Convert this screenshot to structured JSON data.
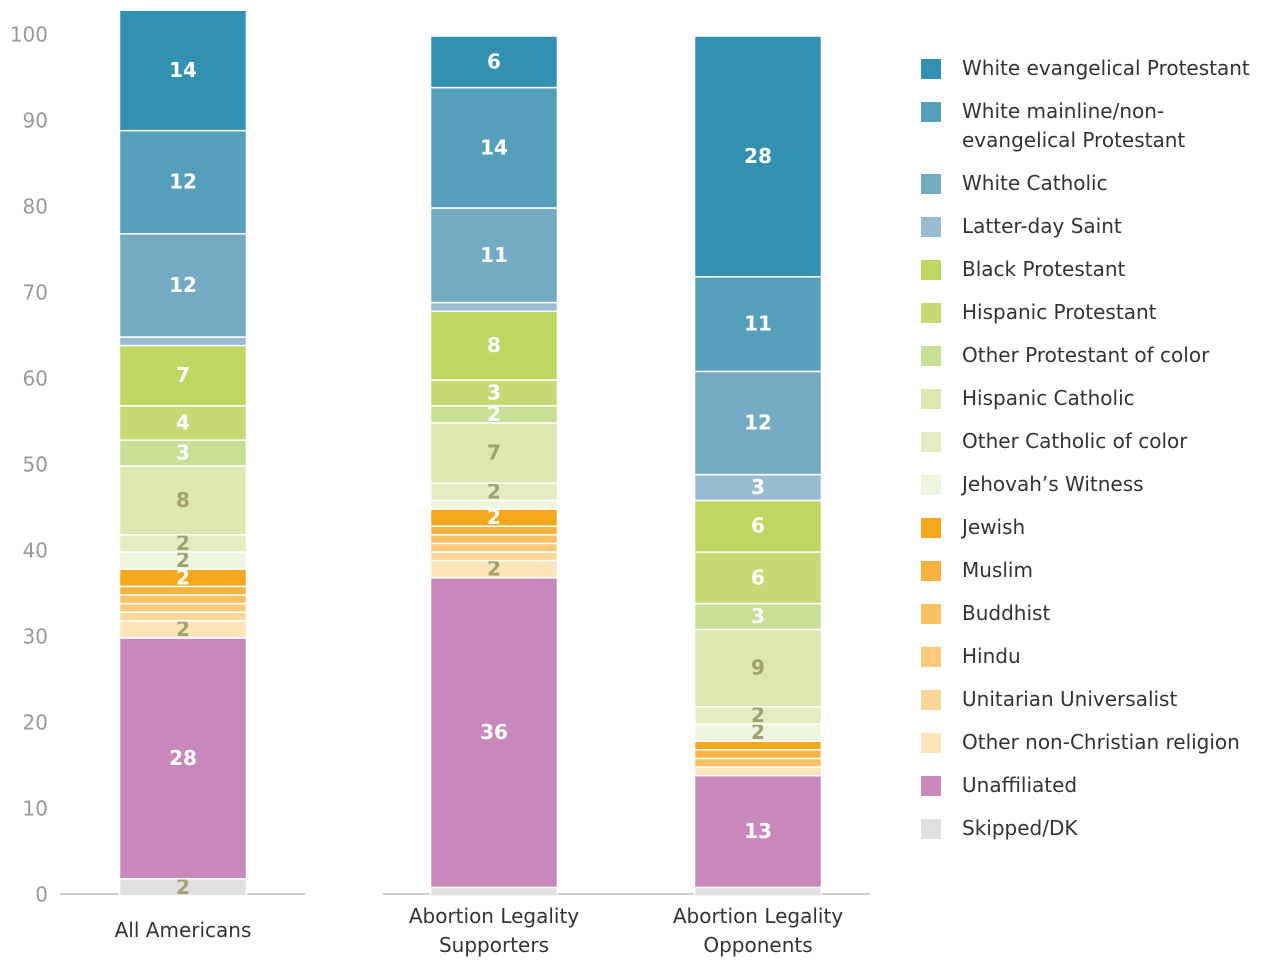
{
  "chart_data": {
    "type": "stacked_bar",
    "categories": [
      "All Americans",
      "Abortion Legality Supporters",
      "Abortion Legality Opponents"
    ],
    "ylim": [
      0,
      100
    ],
    "yticks": [
      0,
      10,
      20,
      30,
      40,
      50,
      60,
      70,
      80,
      90,
      100
    ],
    "grid": false,
    "legend": "right",
    "series": [
      {
        "name": "White evangelical Protestant",
        "color": "#3290b0",
        "values": [
          14,
          6,
          28
        ]
      },
      {
        "name": "White mainline/non-evangelical Protestant",
        "color": "#559fba",
        "values": [
          12,
          14,
          11
        ]
      },
      {
        "name": "White Catholic",
        "color": "#74abc2",
        "values": [
          12,
          11,
          12
        ]
      },
      {
        "name": "Latter-day Saint",
        "color": "#98bdd2",
        "values": [
          1,
          1,
          3
        ]
      },
      {
        "name": "Black Protestant",
        "color": "#bfd661",
        "values": [
          7,
          8,
          6
        ]
      },
      {
        "name": "Hispanic Protestant",
        "color": "#c6d975",
        "values": [
          4,
          3,
          6
        ]
      },
      {
        "name": "Other Protestant of color",
        "color": "#c8df96",
        "values": [
          3,
          2,
          3
        ]
      },
      {
        "name": "Hispanic Catholic",
        "color": "#dde8b0",
        "values": [
          8,
          7,
          9
        ]
      },
      {
        "name": "Other Catholic of color",
        "color": "#e4edc2",
        "values": [
          2,
          2,
          2
        ]
      },
      {
        "name": "Jehovah’s Witness",
        "color": "#eef5df",
        "values": [
          2,
          1,
          2
        ]
      },
      {
        "name": "Jewish",
        "color": "#f5a81c",
        "values": [
          2,
          2,
          1
        ]
      },
      {
        "name": "Muslim",
        "color": "#f8b240",
        "values": [
          1,
          1,
          1
        ]
      },
      {
        "name": "Buddhist",
        "color": "#fbc060",
        "values": [
          1,
          1,
          1
        ]
      },
      {
        "name": "Hindu",
        "color": "#fcca7a",
        "values": [
          1,
          1,
          0
        ]
      },
      {
        "name": "Unitarian Universalist",
        "color": "#fdd699",
        "values": [
          1,
          1,
          0
        ]
      },
      {
        "name": "Other non-Christian religion",
        "color": "#fde4bb",
        "values": [
          2,
          2,
          1
        ]
      },
      {
        "name": "Unaffiliated",
        "color": "#c988bc",
        "values": [
          28,
          36,
          13
        ]
      },
      {
        "name": "Skipped/DK",
        "color": "#e0e0e0",
        "values": [
          2,
          1,
          1
        ]
      }
    ]
  }
}
